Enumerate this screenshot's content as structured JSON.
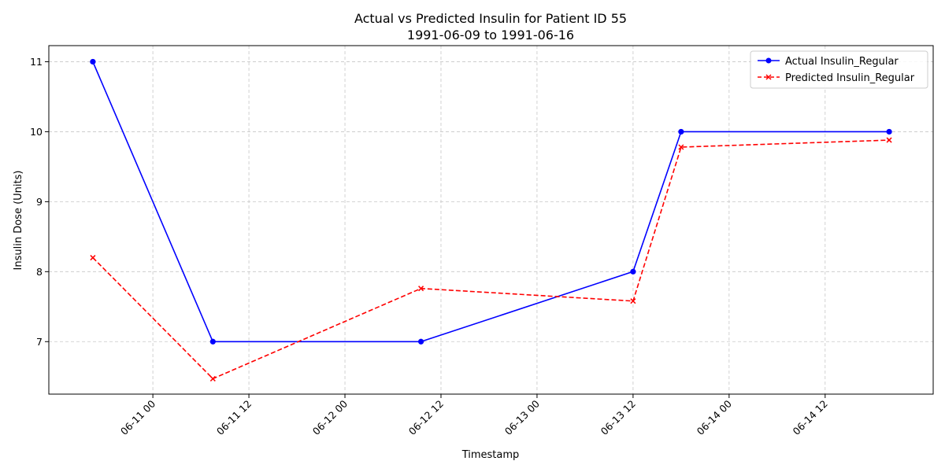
{
  "chart_data": {
    "type": "line",
    "title": "Actual vs Predicted Insulin for Patient ID 55",
    "subtitle": "1991-06-09 to 1991-06-16",
    "xlabel": "Timestamp",
    "ylabel": "Insulin Dose (Units)",
    "x": [
      "1991-06-10 16:30",
      "1991-06-11 07:30",
      "1991-06-12 09:30",
      "1991-06-13 12:00",
      "1991-06-13 18:00",
      "1991-06-14 20:00"
    ],
    "xlim": [
      "1991-06-10 11:00",
      "1991-06-15 01:30"
    ],
    "ylim": [
      6.25,
      11.23
    ],
    "xticks": [
      {
        "at": "1991-06-11 00:00",
        "label": "06-11 00"
      },
      {
        "at": "1991-06-11 12:00",
        "label": "06-11 12"
      },
      {
        "at": "1991-06-12 00:00",
        "label": "06-12 00"
      },
      {
        "at": "1991-06-12 12:00",
        "label": "06-12 12"
      },
      {
        "at": "1991-06-13 00:00",
        "label": "06-13 00"
      },
      {
        "at": "1991-06-13 12:00",
        "label": "06-13 12"
      },
      {
        "at": "1991-06-14 00:00",
        "label": "06-14 00"
      },
      {
        "at": "1991-06-14 12:00",
        "label": "06-14 12"
      }
    ],
    "yticks": [
      {
        "at": 7,
        "label": "7"
      },
      {
        "at": 8,
        "label": "8"
      },
      {
        "at": 9,
        "label": "9"
      },
      {
        "at": 10,
        "label": "10"
      },
      {
        "at": 11,
        "label": "11"
      }
    ],
    "grid": true,
    "legend_position": "top-right",
    "series": [
      {
        "name": "Actual Insulin_Regular",
        "values": [
          11,
          7,
          7,
          8,
          10,
          10
        ],
        "color": "#0000ff",
        "line_style": "solid",
        "marker": "circle"
      },
      {
        "name": "Predicted Insulin_Regular",
        "values": [
          8.2,
          6.47,
          7.76,
          7.58,
          9.78,
          9.88
        ],
        "color": "#ff0000",
        "line_style": "dashed",
        "marker": "x"
      }
    ]
  }
}
